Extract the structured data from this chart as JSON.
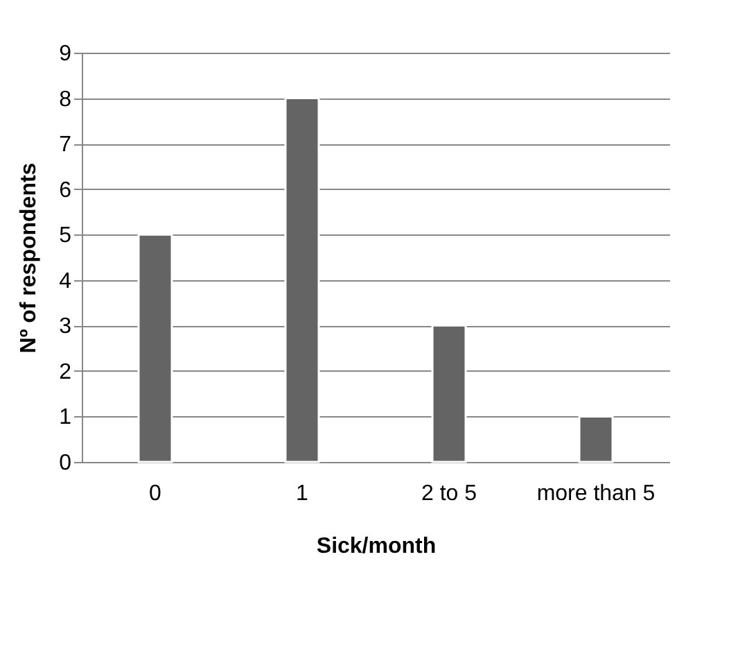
{
  "chart_data": {
    "type": "bar",
    "xlabel": "Sick/month",
    "ylabel": "Nº of respondents",
    "categories": [
      "0",
      "1",
      "2 to 5",
      "more than 5"
    ],
    "values": [
      5,
      8,
      3,
      1
    ],
    "color": "#646464",
    "ylim": [
      0,
      9
    ],
    "yticks": [
      0,
      1,
      2,
      3,
      4,
      5,
      6,
      7,
      8,
      9
    ],
    "grid": "y"
  }
}
